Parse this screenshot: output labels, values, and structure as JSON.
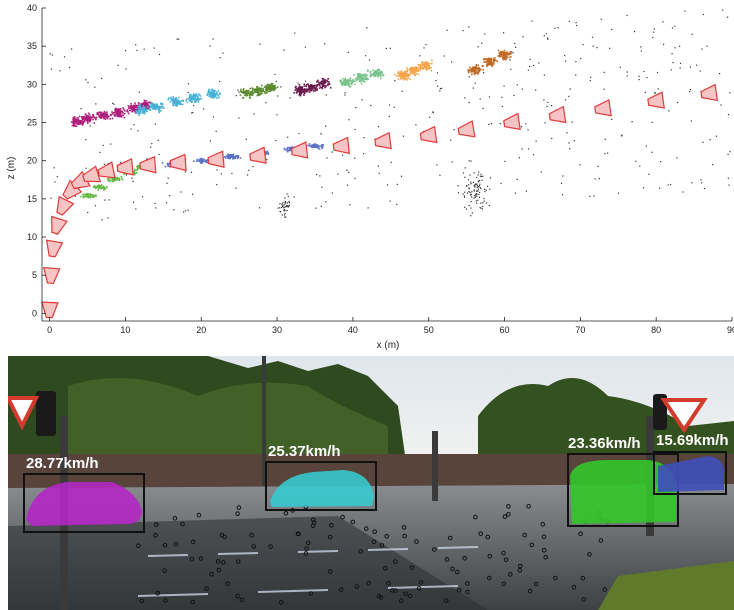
{
  "chart_data": [
    {
      "type": "scatter",
      "title": "",
      "xlabel": "x (m)",
      "ylabel": "z (m)",
      "xlim": [
        -1,
        90
      ],
      "ylim": [
        -1,
        40
      ],
      "xticks": [
        0,
        10,
        20,
        30,
        40,
        50,
        60,
        70,
        80,
        90
      ],
      "yticks": [
        0,
        5,
        10,
        15,
        20,
        25,
        30,
        35,
        40
      ],
      "grid": false,
      "legend": "none",
      "series": [
        {
          "color": "#b01e7c",
          "kind": "vehicle-cloud",
          "x": [
            3.5,
            5,
            7,
            9,
            11,
            12.5
          ],
          "y": [
            25.2,
            25.6,
            26.0,
            26.4,
            26.9,
            27.4
          ]
        },
        {
          "color": "#48b2d6",
          "kind": "vehicle-cloud",
          "x": [
            12,
            14,
            16.5,
            19,
            21.5
          ],
          "y": [
            26.7,
            27.2,
            27.8,
            28.3,
            28.8
          ]
        },
        {
          "color": "#5b8a2e",
          "kind": "vehicle-cloud",
          "x": [
            26,
            27.5,
            29
          ],
          "y": [
            29.0,
            29.3,
            29.6
          ]
        },
        {
          "color": "#6b1a4f",
          "kind": "vehicle-cloud",
          "x": [
            33,
            34.5,
            36
          ],
          "y": [
            29.3,
            29.7,
            30.2
          ]
        },
        {
          "color": "#79c28c",
          "kind": "vehicle-cloud",
          "x": [
            39,
            41,
            43
          ],
          "y": [
            30.4,
            31.0,
            31.5
          ]
        },
        {
          "color": "#f4a54a",
          "kind": "vehicle-cloud",
          "x": [
            46.5,
            48,
            49.5
          ],
          "y": [
            31.3,
            31.9,
            32.6
          ]
        },
        {
          "color": "#c06a25",
          "kind": "vehicle-cloud",
          "x": [
            56,
            58,
            60
          ],
          "y": [
            32.0,
            33.0,
            34.0
          ]
        },
        {
          "color": "#5b72c6",
          "kind": "lane-cloud",
          "x": [
            16,
            20,
            24,
            28,
            32,
            35
          ],
          "y": [
            19.6,
            20.1,
            20.6,
            21.1,
            21.6,
            22.0
          ]
        },
        {
          "color": "#66b845",
          "kind": "lane-cloud",
          "x": [
            5,
            6.5,
            8.5,
            10.5,
            12
          ],
          "y": [
            15.5,
            16.6,
            17.7,
            18.6,
            19.3
          ]
        },
        {
          "color": "#e05a5a",
          "kind": "camera-trajectory",
          "x": [
            0,
            0.2,
            0.5,
            1,
            1.8,
            2.8,
            4,
            5.5,
            7.5,
            10,
            13,
            17,
            22,
            27.5,
            33,
            38.5,
            44,
            50,
            55,
            61,
            67,
            73,
            80,
            87
          ],
          "y": [
            0.5,
            5,
            8.5,
            11.5,
            14,
            16,
            17.2,
            18,
            18.6,
            19.1,
            19.4,
            19.7,
            20.1,
            20.6,
            21.3,
            21.9,
            22.5,
            23.3,
            24,
            25,
            25.9,
            26.8,
            27.8,
            28.8
          ]
        }
      ]
    },
    {
      "type": "annotated-photo",
      "detections": [
        {
          "speed_label": "28.77km/h",
          "color": "#b427c4"
        },
        {
          "speed_label": "25.37km/h",
          "color": "#37c9cf"
        },
        {
          "speed_label": "23.36km/h",
          "color": "#33c62a"
        },
        {
          "speed_label": "15.69km/h",
          "color": "#3f4fb8"
        }
      ]
    }
  ]
}
